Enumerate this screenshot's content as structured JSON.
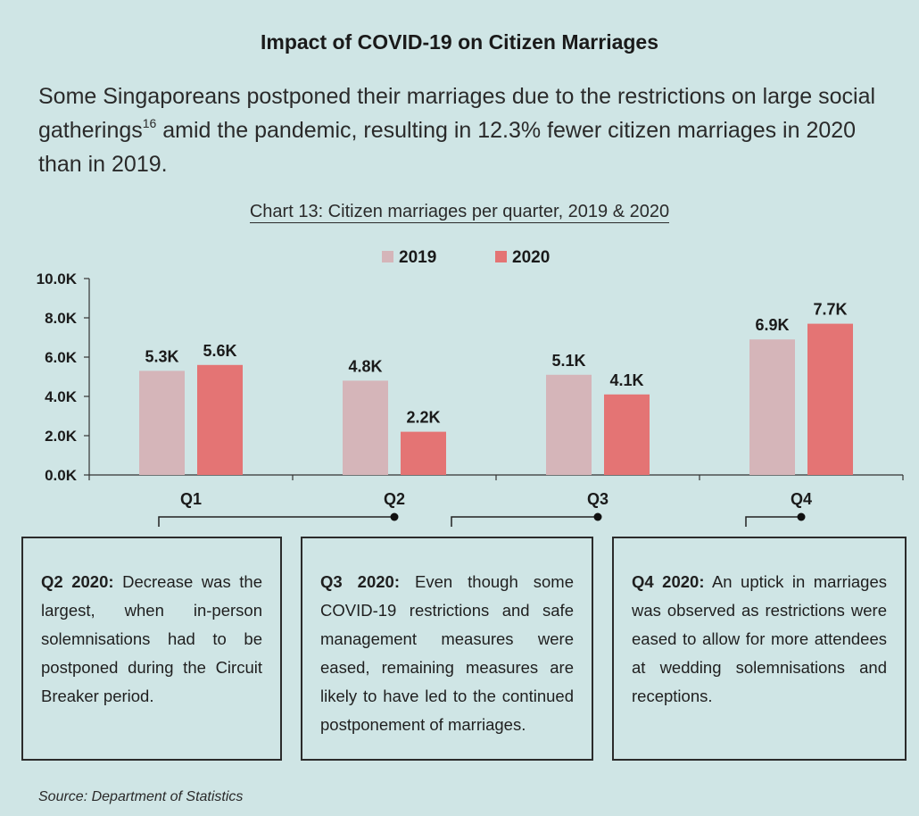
{
  "title": "Impact of COVID-19 on Citizen Marriages",
  "intro": {
    "text_before": "Some Singaporeans postponed their marriages due to the restrictions on large social gatherings",
    "footnote": "16",
    "text_after": " amid the pandemic, resulting in 12.3% fewer citizen marriages in 2020 than in 2019."
  },
  "chart_data": {
    "type": "bar",
    "title": "Chart 13: Citizen marriages per quarter, 2019 & 2020",
    "categories": [
      "Q1",
      "Q2",
      "Q3",
      "Q4"
    ],
    "series": [
      {
        "name": "2019",
        "color": "#d5b5b9",
        "values": [
          5.3,
          4.8,
          5.1,
          6.9
        ],
        "labels": [
          "5.3K",
          "4.8K",
          "5.1K",
          "6.9K"
        ]
      },
      {
        "name": "2020",
        "color": "#e47474",
        "values": [
          5.6,
          2.2,
          4.1,
          7.7
        ],
        "labels": [
          "5.6K",
          "2.2K",
          "4.1K",
          "7.7K"
        ]
      }
    ],
    "ylim": [
      0,
      10
    ],
    "yticks": [
      0,
      2,
      4,
      6,
      8,
      10
    ],
    "ytick_labels": [
      "0.0K",
      "2.0K",
      "4.0K",
      "6.0K",
      "8.0K",
      "10.0K"
    ],
    "xlabel": "",
    "ylabel": "",
    "legend_position": "top-center"
  },
  "notes": [
    {
      "heading": "Q2 2020:",
      "text": " Decrease was the largest, when in-person solemnisations had to be postponed during the Circuit Breaker period."
    },
    {
      "heading": "Q3 2020:",
      "text": " Even though some COVID-19 restrictions and safe management measures were eased, remaining measures are likely to have led to the continued postponement of marriages."
    },
    {
      "heading": "Q4 2020:",
      "text": " An uptick in marriages was observed as restrictions were eased to allow for more attendees at wedding solemnisations and receptions."
    }
  ],
  "source": "Source: Department of Statistics"
}
